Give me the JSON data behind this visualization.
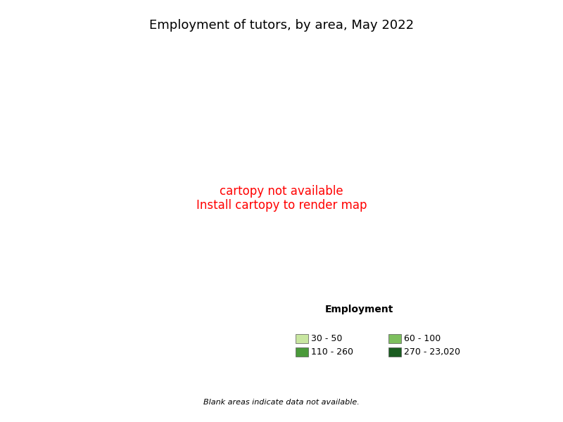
{
  "title": "Employment of tutors, by area, May 2022",
  "title_fontsize": 13,
  "legend_title": "Employment",
  "legend_title_fontsize": 10,
  "legend_fontsize": 9,
  "legend_labels": [
    "30 - 50",
    "60 - 100",
    "110 - 260",
    "270 - 23,020"
  ],
  "legend_colors": [
    "#c8e6a0",
    "#7dbf5e",
    "#4a9a3a",
    "#1a5c20"
  ],
  "no_data_color": "#ffffff",
  "border_color": "#ffffff",
  "blank_text": "Blank areas indicate data not available.",
  "blank_text_fontsize": 8,
  "background_color": "#ffffff",
  "fig_width": 8.0,
  "fig_height": 6.0,
  "dpi": 100
}
